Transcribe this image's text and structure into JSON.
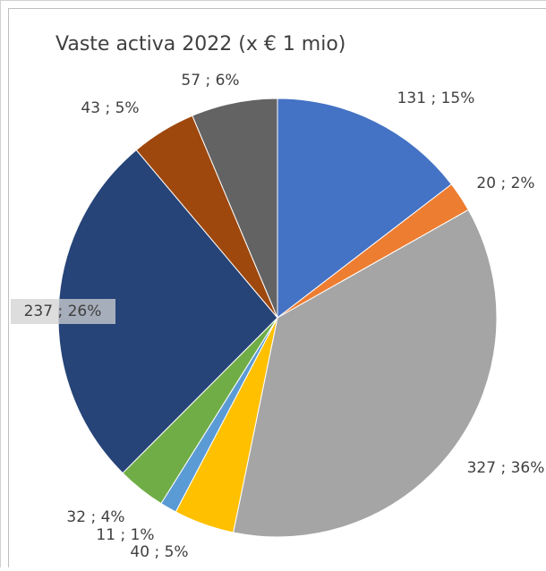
{
  "chart_data": {
    "type": "pie",
    "title": "Vaste activa 2022 (x € 1 mio)",
    "values": [
      131,
      20,
      327,
      40,
      11,
      32,
      237,
      43,
      57
    ],
    "value_labels": [
      "131 ; 15%",
      "20 ; 2%",
      "327 ; 36%",
      "40 ; 5%",
      "11 ; 1%",
      "32 ; 4%",
      "237 ; 26%",
      "43 ; 5%",
      "57 ; 6%"
    ],
    "colors": [
      "#4472c4",
      "#ed7d31",
      "#a5a5a5",
      "#ffc000",
      "#5b9bd5",
      "#70ad47",
      "#264478",
      "#9e480e",
      "#636363"
    ]
  }
}
